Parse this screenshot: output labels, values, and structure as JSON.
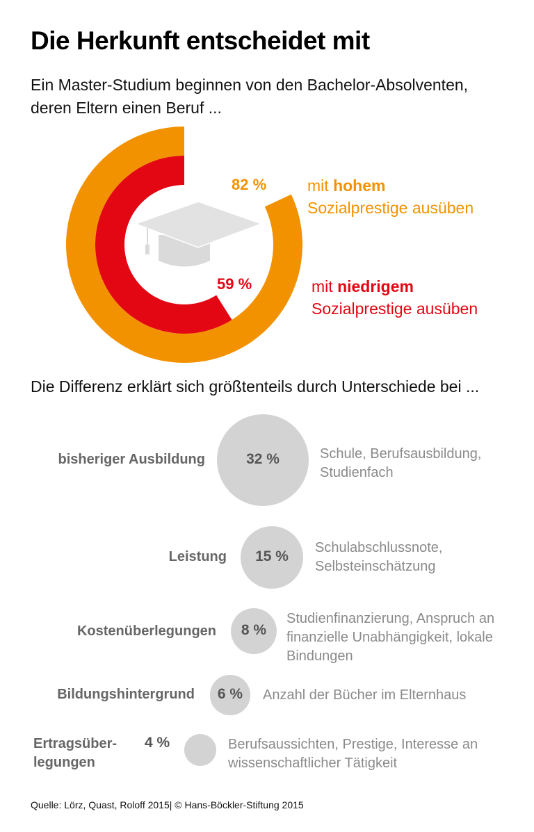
{
  "title": "Die Herkunft entscheidet mit",
  "subtitle": "Ein Master-Studium beginnen von den Bachelor-Absolventen, deren Eltern einen Beruf ...",
  "icons": {
    "center": "graduation-cap-icon"
  },
  "colors": {
    "high": "#f39200",
    "low": "#e30613",
    "bubble": "#d3d3d3",
    "label_gray": "#666666",
    "desc_gray": "#8a8a8a"
  },
  "ring": {
    "high": {
      "value_label": "82 %",
      "prefix": "mit",
      "bold": "hohem",
      "suffix": "Sozialprestige ausüben"
    },
    "low": {
      "value_label": "59 %",
      "prefix": "mit",
      "bold": "niedrigem",
      "suffix": "Sozialprestige ausüben"
    }
  },
  "section2_intro": "Die Differenz erklärt sich größtenteils durch Unterschiede bei ...",
  "factors": [
    {
      "name": "bisheriger Ausbildung",
      "value_label": "32 %",
      "desc": "Schule, Berufsausbildung, Studienfach"
    },
    {
      "name": "Leistung",
      "value_label": "15 %",
      "desc": "Schulabschlussnote, Selbsteinschätzung"
    },
    {
      "name": "Kostenüberlegungen",
      "value_label": "8 %",
      "desc": "Studienfinanzierung, Anspruch an finanzielle Unabhängigkeit, lokale Bindungen"
    },
    {
      "name": "Bildungshintergrund",
      "value_label": "6 %",
      "desc": "Anzahl der Bücher im Elternhaus"
    },
    {
      "name": "Ertragsüber-legungen",
      "value_label": "4 %",
      "desc": "Berufsaussichten, Prestige, Interesse an wissenschaftlicher Tätigkeit"
    }
  ],
  "source": "Quelle: Lörz, Quast, Roloff 2015| © Hans-Böckler-Stiftung 2015",
  "chart_data": [
    {
      "type": "pie",
      "subtype": "radial-ring",
      "title": "Die Herkunft entscheidet mit",
      "subtitle": "Ein Master-Studium beginnen von den Bachelor-Absolventen, deren Eltern einen Beruf ...",
      "series": [
        {
          "name": "mit hohem Sozialprestige ausüben",
          "value": 82,
          "unit": "%",
          "color": "#f39200"
        },
        {
          "name": "mit niedrigem Sozialprestige ausüben",
          "value": 59,
          "unit": "%",
          "color": "#e30613"
        }
      ],
      "range": [
        0,
        100
      ]
    },
    {
      "type": "bubble",
      "title": "Die Differenz erklärt sich größtenteils durch Unterschiede bei ...",
      "categories": [
        "bisheriger Ausbildung",
        "Leistung",
        "Kostenüberlegungen",
        "Bildungshintergrund",
        "Ertragsüberlegungen"
      ],
      "values": [
        32,
        15,
        8,
        6,
        4
      ],
      "unit": "%"
    }
  ]
}
